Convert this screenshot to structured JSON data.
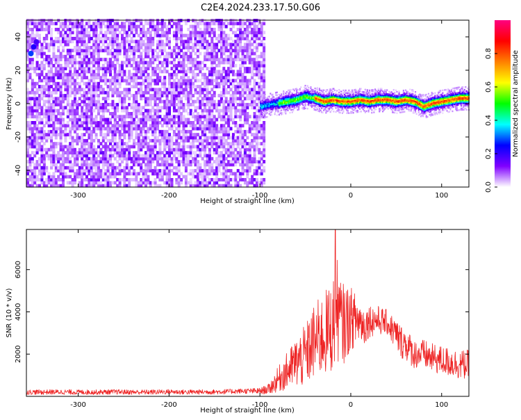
{
  "title": "C2E4.2024.233.17.50.G06",
  "chart_data": [
    {
      "type": "heatmap",
      "xlabel": "Height of straight line (km)",
      "ylabel": "Frequency (Hz)",
      "xlim": [
        -357,
        130
      ],
      "ylim": [
        -50,
        50
      ],
      "xticks": [
        -300,
        -200,
        -100,
        0,
        100
      ],
      "yticks": [
        -40,
        -20,
        0,
        20,
        40
      ],
      "noise_region_x": [
        -357,
        -95
      ],
      "signal_region_x": [
        -100,
        130
      ],
      "signal_track": {
        "x": [
          -100,
          -90,
          -80,
          -70,
          -60,
          -50,
          -45,
          -40,
          -30,
          -20,
          -10,
          0,
          10,
          20,
          30,
          40,
          50,
          60,
          70,
          80,
          90,
          100,
          110,
          120,
          130
        ],
        "hz": [
          -2,
          -1,
          0,
          1,
          2,
          4,
          3,
          3,
          1,
          2,
          1,
          1,
          2,
          1,
          2,
          2,
          1,
          2,
          1,
          -2,
          0,
          1,
          2,
          3,
          3
        ]
      },
      "colorbar": {
        "label": "Normalized spectral amplitude",
        "range": [
          0,
          1
        ],
        "ticks": [
          0.0,
          0.2,
          0.4,
          0.6,
          0.8
        ],
        "tick_labels": [
          "0.0",
          "0.2",
          "0.4",
          "0.6",
          "0.8"
        ],
        "colors": [
          "#ffffff",
          "#8000ff",
          "#0000ff",
          "#00ffff",
          "#00ff00",
          "#ffff00",
          "#ff8000",
          "#ff0000",
          "#ff0080"
        ]
      },
      "grid": false,
      "legend": "none"
    },
    {
      "type": "line",
      "xlabel": "Height of straight line (km)",
      "ylabel": "SNR (10 * v/v)",
      "xlim": [
        -357,
        130
      ],
      "ylim": [
        0,
        7900
      ],
      "xticks": [
        -300,
        -200,
        -100,
        0,
        100
      ],
      "yticks": [
        2000,
        4000,
        6000
      ],
      "color": "#ee2222",
      "series": [
        {
          "x": [
            -357,
            -340,
            -320,
            -300,
            -280,
            -260,
            -240,
            -220,
            -200,
            -180,
            -160,
            -140,
            -120,
            -100,
            -90,
            -80,
            -70,
            -60,
            -50,
            -40,
            -30,
            -20,
            -15,
            -10,
            -5,
            0,
            5,
            10,
            15,
            20,
            30,
            40,
            50,
            55,
            60,
            70,
            80,
            90,
            100,
            110,
            120,
            130
          ],
          "mean": [
            200,
            200,
            210,
            200,
            200,
            210,
            200,
            200,
            220,
            200,
            210,
            220,
            250,
            250,
            350,
            800,
            1200,
            1600,
            1900,
            2600,
            2900,
            3300,
            4100,
            3400,
            3500,
            3700,
            3600,
            3600,
            3300,
            3600,
            3600,
            3500,
            2900,
            2600,
            2500,
            2000,
            2000,
            1800,
            1700,
            1600,
            1500,
            1500
          ],
          "spread": [
            120,
            120,
            120,
            120,
            120,
            120,
            120,
            120,
            120,
            120,
            120,
            120,
            120,
            150,
            250,
            600,
            900,
            1200,
            1500,
            1800,
            2000,
            2200,
            2400,
            2000,
            1800,
            1500,
            1300,
            1100,
            900,
            800,
            700,
            600,
            800,
            800,
            800,
            700,
            700,
            700,
            700,
            700,
            700,
            700
          ],
          "peak": {
            "x": -17,
            "y": 7900
          }
        }
      ],
      "grid": false,
      "legend": "none"
    }
  ]
}
